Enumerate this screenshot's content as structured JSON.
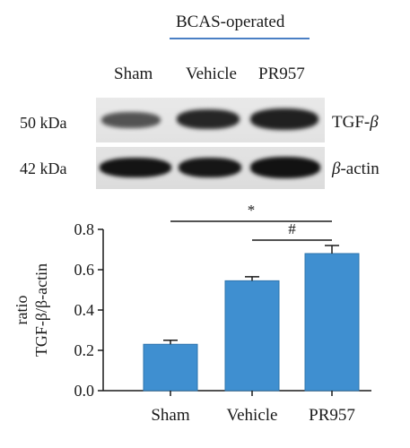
{
  "blot": {
    "group_label": "BCAS-operated",
    "lanes": [
      "Sham",
      "Vehicle",
      "PR957"
    ],
    "rows": [
      {
        "size": "50 kDa",
        "protein": "TGF-",
        "protein_symbol": "β",
        "protein_suffix": ""
      },
      {
        "size": "42 kDa",
        "protein": "",
        "protein_symbol": "β",
        "protein_suffix": "-actin"
      }
    ]
  },
  "colors": {
    "bar": "#3f8fd0",
    "bar_edge": "#2e74ad",
    "group_line": "#4a7fc4",
    "axis": "#1a1a1a"
  },
  "chart_data": {
    "type": "bar",
    "categories": [
      "Sham",
      "Vehicle",
      "PR957"
    ],
    "values": [
      0.23,
      0.545,
      0.68
    ],
    "errors": [
      0.02,
      0.02,
      0.04
    ],
    "ylabel_line1": "ratio",
    "ylabel_line2": "TGF-β/β-actin",
    "ylim": [
      0,
      0.8
    ],
    "yticks": [
      "0.0",
      "0.2",
      "0.4",
      "0.6",
      "0.8"
    ],
    "significance": [
      {
        "from": "Sham",
        "to": "PR957",
        "label": "*"
      },
      {
        "from": "Vehicle",
        "to": "PR957",
        "label": "#"
      }
    ]
  }
}
